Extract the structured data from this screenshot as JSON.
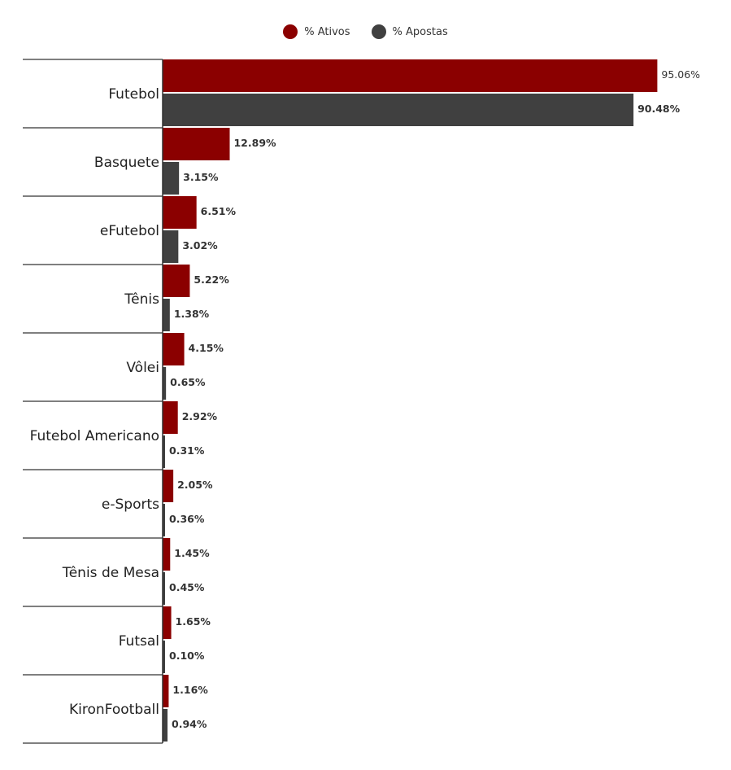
{
  "chart_data": {
    "type": "bar",
    "orientation": "horizontal",
    "categories": [
      "Futebol",
      "Basquete",
      "eFutebol",
      "Tênis",
      "Vôlei",
      "Futebol Americano",
      "e-Sports",
      "Tênis de Mesa",
      "Futsal",
      "KironFootball"
    ],
    "series": [
      {
        "name": "% Ativos",
        "color": "#8b0000",
        "values": [
          95.06,
          12.89,
          6.51,
          5.22,
          4.15,
          2.92,
          2.05,
          1.45,
          1.65,
          1.16
        ],
        "labels": [
          "95.06%",
          "12.89%",
          "6.51%",
          "5.22%",
          "4.15%",
          "2.92%",
          "2.05%",
          "1.45%",
          "1.65%",
          "1.16%"
        ]
      },
      {
        "name": "% Apostas",
        "color": "#404040",
        "values": [
          90.48,
          3.15,
          3.02,
          1.38,
          0.65,
          0.31,
          0.36,
          0.45,
          0.1,
          0.94
        ],
        "labels": [
          "90.48%",
          "3.15%",
          "3.02%",
          "1.38%",
          "0.65%",
          "0.31%",
          "0.36%",
          "0.45%",
          "0.10%",
          "0.94%"
        ]
      }
    ],
    "xlim": [
      0,
      100
    ],
    "legend_position": "top-center",
    "grid": false
  }
}
